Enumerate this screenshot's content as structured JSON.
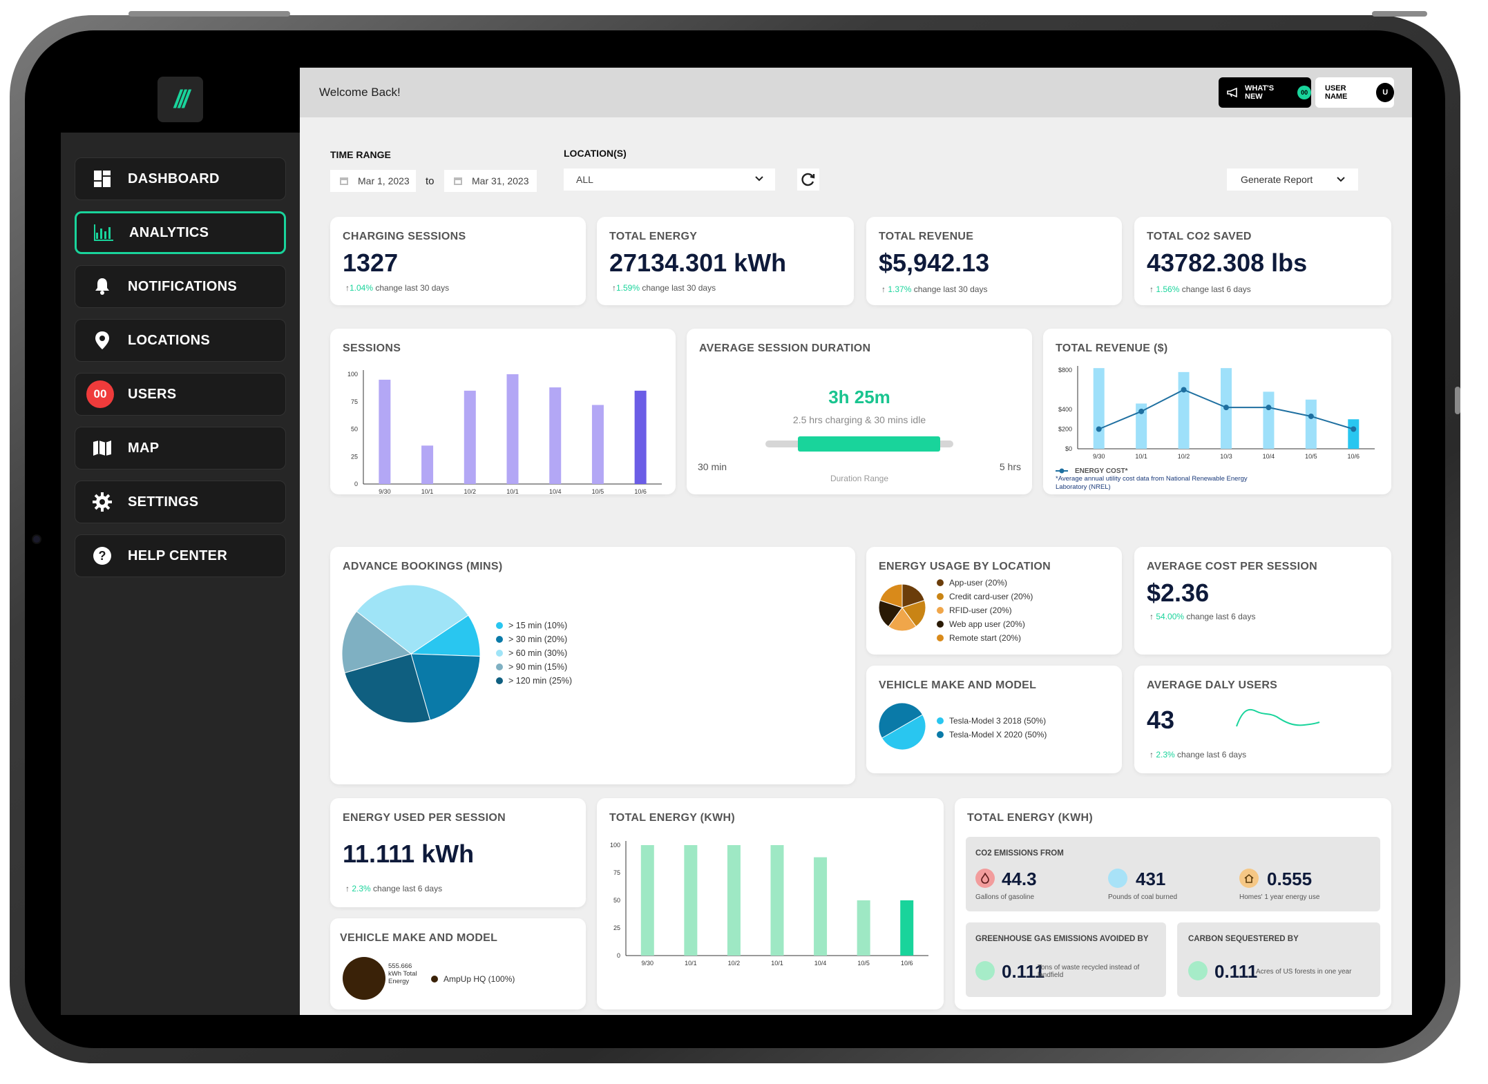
{
  "sidebar": {
    "logo": "///",
    "items": [
      {
        "label": "DASHBOARD"
      },
      {
        "label": "ANALYTICS"
      },
      {
        "label": "NOTIFICATIONS"
      },
      {
        "label": "LOCATIONS"
      },
      {
        "label": "USERS",
        "badge": "00"
      },
      {
        "label": "MAP"
      },
      {
        "label": "SETTINGS"
      },
      {
        "label": "HELP CENTER"
      }
    ]
  },
  "header": {
    "welcome": "Welcome Back!",
    "whats_new": "WHAT'S NEW",
    "whats_new_badge": "00",
    "user_name": "USER NAME",
    "user_initial": "U"
  },
  "filters": {
    "time_range_label": "TIME RANGE",
    "start_date": "Mar 1, 2023",
    "to": "to",
    "end_date": "Mar 31, 2023",
    "location_label": "LOCATION(S)",
    "location_value": "ALL",
    "generate_report": "Generate Report"
  },
  "kpis": [
    {
      "title": "CHARGING SESSIONS",
      "value": "1327",
      "pct": "1.04%",
      "change": " change last 30 days"
    },
    {
      "title": "TOTAL ENERGY",
      "value": "27134.301 kWh",
      "pct": "1.59%",
      "change": " change last 30 days"
    },
    {
      "title": "TOTAL REVENUE",
      "value": "$5,942.13",
      "pct": "1.37%",
      "change": " change last 30 days"
    },
    {
      "title": "TOTAL CO2 SAVED",
      "value": "43782.308 lbs",
      "pct": "1.56%",
      "change": " change last 6 days"
    }
  ],
  "sessions_card": {
    "title": "SESSIONS"
  },
  "avg_duration": {
    "title": "AVERAGE SESSION DURATION",
    "value": "3h 25m",
    "detail": "2.5 hrs charging & 30 mins idle",
    "min_label": "30 min",
    "max_label": "5 hrs",
    "range_label": "Duration Range",
    "range_start": 0.1,
    "range_end": 0.9
  },
  "revenue_card": {
    "title": "TOTAL REVENUE ($)",
    "legend": "ENERGY COST*",
    "footnote": "*Average annual utility cost data from National Renewable Energy Laboratory (NREL)"
  },
  "bookings": {
    "title": "ADVANCE BOOKINGS (MINS)",
    "legend": [
      {
        "label": "> 15 min (10%)",
        "color": "#29c6f0"
      },
      {
        "label": "> 30 min (20%)",
        "color": "#0a7aa8"
      },
      {
        "label": "> 60 min (30%)",
        "color": "#9fe4f7"
      },
      {
        "label": "> 90 min (15%)",
        "color": "#7fb0c2"
      },
      {
        "label": "> 120 min (25%)",
        "color": "#0f5f80"
      }
    ]
  },
  "energy_by_location": {
    "title": "ENERGY USAGE BY LOCATION",
    "legend": [
      {
        "label": "App-user (20%)",
        "color": "#6b3d0a"
      },
      {
        "label": "Credit card-user (20%)",
        "color": "#c98414"
      },
      {
        "label": "RFID-user (20%)",
        "color": "#f0a64a"
      },
      {
        "label": "Web app user (20%)",
        "color": "#2a1a05"
      },
      {
        "label": "Remote start (20%)",
        "color": "#d98a1a"
      }
    ]
  },
  "avg_cost": {
    "title": "AVERAGE COST PER SESSION",
    "value": "$2.36",
    "pct": "54.00%",
    "change": " change last 6 days"
  },
  "vehicle_make": {
    "title": "VEHICLE MAKE AND MODEL",
    "legend": [
      {
        "label": "Tesla-Model 3 2018 (50%)",
        "color": "#29c6f0"
      },
      {
        "label": "Tesla-Model X 2020 (50%)",
        "color": "#0a7aa8"
      }
    ]
  },
  "daily_users": {
    "title": "AVERAGE DALY USERS",
    "value": "43",
    "pct": "2.3%",
    "change": " change last 6 days"
  },
  "energy_per_session": {
    "title": "ENERGY USED PER SESSION",
    "value": "11.111 kWh",
    "pct": "2.3%",
    "change": " change last 6 days"
  },
  "vehicle_make2": {
    "title": "VEHICLE MAKE AND MODEL",
    "center_value": "555.666",
    "center_text_1": "kWh Total",
    "center_text_2": "Energy",
    "legend": "AmpUp HQ (100%)"
  },
  "total_energy_chart": {
    "title": "TOTAL ENERGY (KWH)"
  },
  "co2": {
    "title": "TOTAL ENERGY (KWH)",
    "emissions_from": "CO2 EMISSIONS FROM",
    "items": [
      {
        "value": "44.3",
        "label": "Gallons of gasoline",
        "color": "#f29c9c"
      },
      {
        "value": "431",
        "label": "Pounds of coal burned",
        "color": "#a8e2f7"
      },
      {
        "value": "0.555",
        "label": "Homes' 1 year energy use",
        "color": "#f5c785"
      }
    ],
    "ghg_title": "GREENHOUSE GAS EMISSIONS AVOIDED BY",
    "ghg_value": "0.111",
    "ghg_label": "Tons of waste recycled instead of landfield",
    "carbon_title": "CARBON SEQUESTERED BY",
    "carbon_value": "0.111",
    "carbon_label": "Acres of US forests in one year"
  },
  "chart_data": [
    {
      "type": "bar",
      "title": "SESSIONS",
      "categories": [
        "9/30",
        "10/1",
        "10/2",
        "10/1",
        "10/4",
        "10/5",
        "10/6"
      ],
      "values": [
        95,
        35,
        85,
        100,
        88,
        72,
        85
      ],
      "ylim": [
        0,
        100
      ],
      "yticks": [
        0,
        25,
        50,
        75,
        100
      ],
      "colors": {
        "bar": "#b3a7f5",
        "highlight": "#6b5de6"
      }
    },
    {
      "type": "bar",
      "title": "TOTAL REVENUE ($)",
      "categories": [
        "9/30",
        "10/1",
        "10/2",
        "10/3",
        "10/4",
        "10/5",
        "10/6"
      ],
      "values": [
        820,
        460,
        780,
        820,
        580,
        500,
        300
      ],
      "series": [
        {
          "name": "ENERGY COST*",
          "values": [
            200,
            380,
            600,
            420,
            420,
            330,
            200
          ]
        }
      ],
      "ylim": [
        0,
        800
      ],
      "yticks": [
        0,
        200,
        400,
        800
      ],
      "ytick_labels": [
        "$0",
        "$200",
        "$400",
        "$800"
      ],
      "colors": {
        "bar": "#9ee0fa",
        "highlight": "#29c6f0",
        "line": "#1e6fa0"
      }
    },
    {
      "type": "pie",
      "title": "ADVANCE BOOKINGS (MINS)",
      "categories": [
        "> 15 min",
        "> 30 min",
        "> 60 min",
        "> 90 min",
        "> 120 min"
      ],
      "values": [
        10,
        20,
        30,
        15,
        25
      ]
    },
    {
      "type": "bar",
      "title": "TOTAL ENERGY (KWH)",
      "categories": [
        "9/30",
        "10/1",
        "10/2",
        "10/1",
        "10/4",
        "10/5",
        "10/6"
      ],
      "values": [
        100,
        100,
        100,
        100,
        89,
        50,
        50
      ],
      "ylim": [
        0,
        100
      ],
      "yticks": [
        0,
        25,
        50,
        75,
        100
      ],
      "colors": {
        "bar": "#9ee8c4",
        "highlight": "#19d49b"
      }
    }
  ]
}
